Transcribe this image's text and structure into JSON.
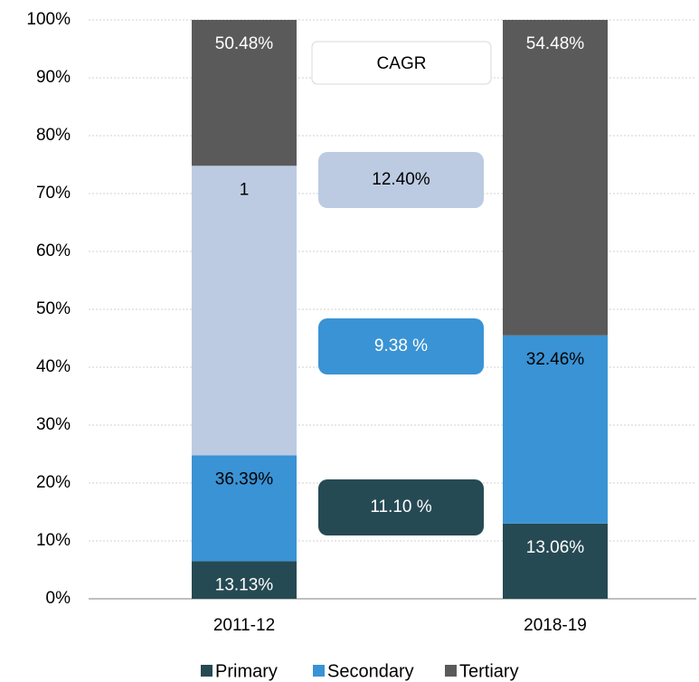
{
  "chart_data": {
    "type": "stacked_bar",
    "categories": [
      "2011-12",
      "2018-19"
    ],
    "series": [
      {
        "name": "Primary",
        "color": "#264a54",
        "values": [
          6.5,
          13
        ],
        "labels": [
          "13.13%",
          "13.06%"
        ],
        "label_color": "#ffffff"
      },
      {
        "name": "Secondary",
        "color": "#3a93d4",
        "values": [
          18.3,
          32.5
        ],
        "labels": [
          "36.39%",
          "32.46%"
        ],
        "label_color": "#000000"
      },
      {
        "color": "#bccbe2",
        "values": [
          50,
          null
        ],
        "labels": [
          "1",
          null
        ],
        "label_color": "#000000"
      },
      {
        "name": "Tertiary",
        "color": "#5a5a5a",
        "values": [
          25.2,
          54.5
        ],
        "labels": [
          "50.48%",
          "54.48%"
        ],
        "label_color": "#ffffff"
      }
    ],
    "ylim": [
      0,
      100
    ],
    "yticks": [
      {
        "value": 0,
        "label": "0%"
      },
      {
        "value": 10,
        "label": "10%"
      },
      {
        "value": 20,
        "label": "20%"
      },
      {
        "value": 30,
        "label": "30%"
      },
      {
        "value": 40,
        "label": "40%"
      },
      {
        "value": 50,
        "label": "50%"
      },
      {
        "value": 60,
        "label": "60%"
      },
      {
        "value": 70,
        "label": "70%"
      },
      {
        "value": 80,
        "label": "80%"
      },
      {
        "value": 90,
        "label": "90%"
      },
      {
        "value": 100,
        "label": "100%"
      }
    ],
    "grid": true,
    "cagr": {
      "title": "CAGR",
      "items": [
        {
          "label": "12.40%",
          "color": "#bccbe2",
          "text_color": "#000000"
        },
        {
          "label": "9.38 %",
          "color": "#3a93d4",
          "text_color": "#ffffff"
        },
        {
          "label": "11.10 %",
          "color": "#264a54",
          "text_color": "#ffffff"
        }
      ]
    }
  }
}
